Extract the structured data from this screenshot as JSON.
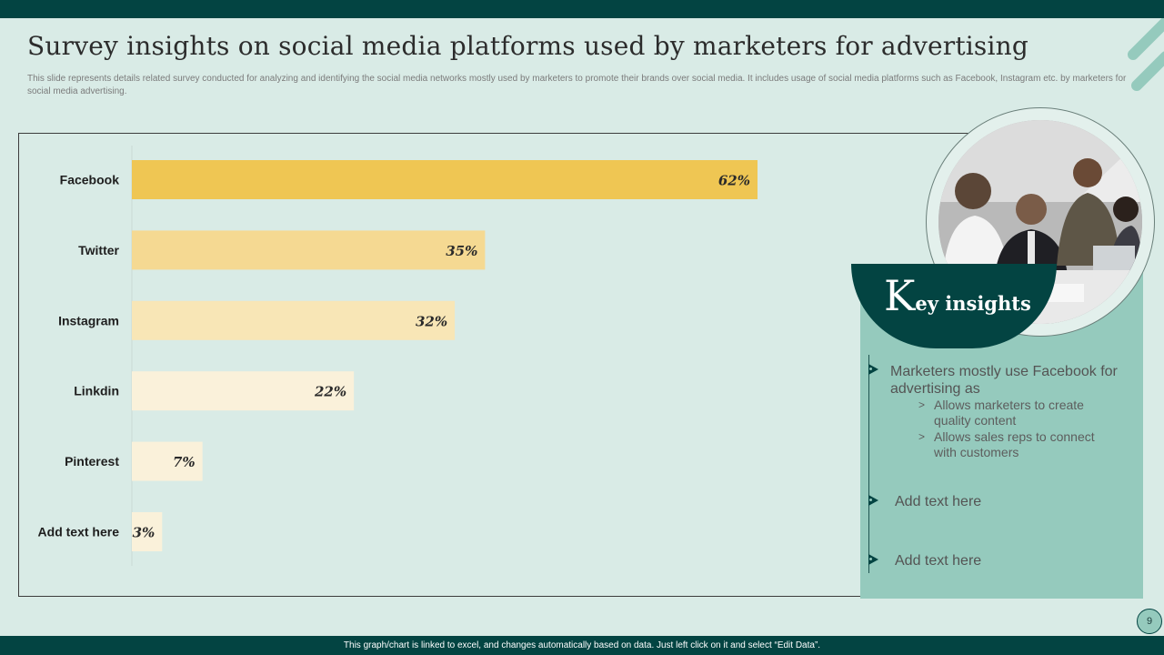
{
  "slide": {
    "title": "Survey insights on social media platforms used by marketers for advertising",
    "subtitle": "This slide represents details related survey conducted for analyzing and identifying the social media networks mostly used by marketers to promote their brands over social media.  It includes usage of social media platforms such as Facebook, Instagram etc. by marketers for social media advertising.",
    "footer_note": "This graph/chart is linked to excel, and changes automatically based on data. Just left click on it and select “Edit Data”.",
    "page_number": "9"
  },
  "chart_data": {
    "type": "bar",
    "orientation": "horizontal",
    "categories": [
      "Facebook",
      "Twitter",
      "Instagram",
      "Linkdin",
      "Pinterest",
      "Add text here"
    ],
    "values": [
      62,
      35,
      32,
      22,
      7,
      3
    ],
    "value_labels": [
      "62%",
      "35%",
      "32%",
      "22%",
      "7%",
      "3%"
    ],
    "colors": [
      "#efc653",
      "#f5d992",
      "#f8e6b6",
      "#faf1da",
      "#faf1da",
      "#faf1da"
    ],
    "xlim": [
      0,
      70
    ]
  },
  "insights": {
    "title_initial": "K",
    "title_rest": "ey insights",
    "items": [
      {
        "text": "Marketers mostly use Facebook for advertising as",
        "sub": [
          "Allows marketers to create quality content",
          "Allows sales reps to connect with customers"
        ]
      },
      {
        "text": "Add text here"
      },
      {
        "text": "Add text here"
      }
    ],
    "sub_marker": ">"
  },
  "colors": {
    "background": "#d9ebe6",
    "dark_teal": "#034442",
    "panel_teal": "#95cabd",
    "accent_yellow": "#efc653"
  }
}
